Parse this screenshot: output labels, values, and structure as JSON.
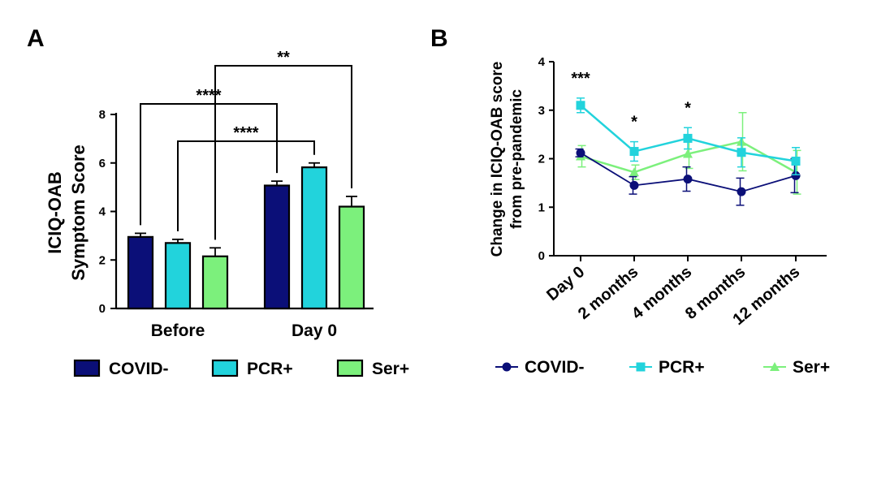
{
  "panels": {
    "a": "A",
    "b": "B"
  },
  "colors": {
    "covid_neg": "#0b0f78",
    "pcr_pos": "#22d3dc",
    "ser_pos": "#7cf07c",
    "axis": "#000000"
  },
  "chart_data": [
    {
      "type": "bar",
      "panel": "A",
      "ylabel_lines": [
        "ICIQ-OAB",
        "Symptom  Score"
      ],
      "ylim": [
        0,
        8
      ],
      "yticks": [
        0,
        2,
        4,
        6,
        8
      ],
      "categories": [
        "Before",
        "Day 0"
      ],
      "series": [
        {
          "name": "COVID-",
          "values": [
            2.95,
            5.07
          ],
          "errors": [
            0.15,
            0.18
          ]
        },
        {
          "name": "PCR+",
          "values": [
            2.7,
            5.82
          ],
          "errors": [
            0.15,
            0.18
          ]
        },
        {
          "name": "Ser+",
          "values": [
            2.15,
            4.2
          ],
          "errors": [
            0.35,
            0.42
          ]
        }
      ],
      "significance": [
        {
          "from": "Before|COVID-",
          "to": "Day 0|COVID-",
          "label": "****"
        },
        {
          "from": "Before|PCR+",
          "to": "Day 0|PCR+",
          "label": "****"
        },
        {
          "from": "Before|Ser+",
          "to": "Day 0|Ser+",
          "label": "**"
        }
      ],
      "legend": [
        "COVID-",
        "PCR+",
        "Ser+"
      ],
      "legend_position": "bottom"
    },
    {
      "type": "line",
      "panel": "B",
      "ylabel_lines": [
        "Change in ICIQ-OAB score",
        "from pre-pandemic"
      ],
      "ylim": [
        0,
        4
      ],
      "yticks": [
        0,
        1,
        2,
        3,
        4
      ],
      "categories": [
        "Day 0",
        "2 months",
        "4 months",
        "8 months",
        "12 months"
      ],
      "series": [
        {
          "name": "COVID-",
          "marker": "circle",
          "values": [
            2.12,
            1.45,
            1.58,
            1.32,
            1.65
          ],
          "errors": [
            0.08,
            0.18,
            0.25,
            0.28,
            0.35
          ]
        },
        {
          "name": "PCR+",
          "marker": "square",
          "values": [
            3.1,
            2.15,
            2.42,
            2.13,
            1.95
          ],
          "errors": [
            0.15,
            0.2,
            0.22,
            0.3,
            0.28
          ]
        },
        {
          "name": "Ser+",
          "marker": "triangle",
          "values": [
            2.05,
            1.72,
            2.1,
            2.35,
            1.72
          ],
          "errors": [
            0.22,
            0.15,
            0.3,
            0.6,
            0.45
          ]
        }
      ],
      "annotations": [
        {
          "category": "Day 0",
          "label": "***"
        },
        {
          "category": "2 months",
          "label": "*"
        },
        {
          "category": "4 months",
          "label": "*"
        }
      ],
      "legend": [
        "COVID-",
        "PCR+",
        "Ser+"
      ],
      "legend_position": "bottom"
    }
  ]
}
